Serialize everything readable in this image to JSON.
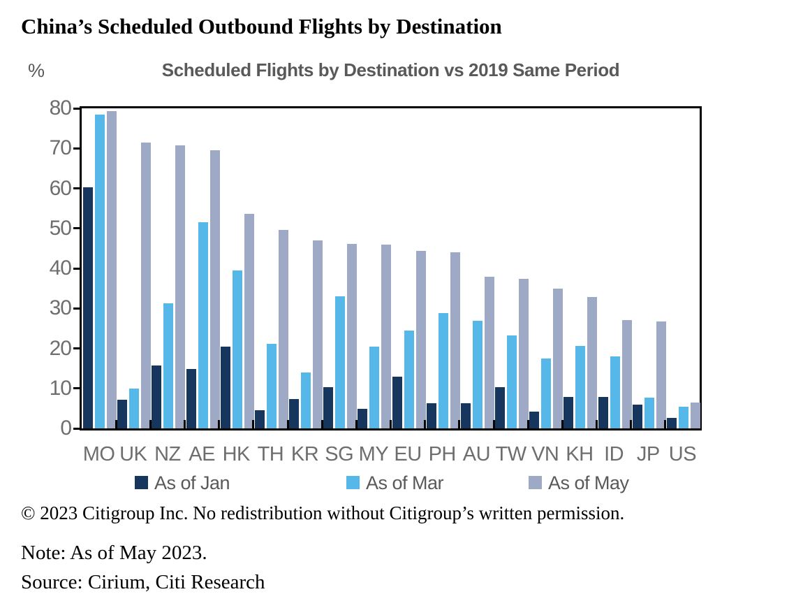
{
  "page_title": "China’s Scheduled Outbound Flights by Destination",
  "chart_data": {
    "type": "bar",
    "title": "Scheduled Flights by Destination vs 2019 Same Period",
    "unit_label": "%",
    "ylabel": "%",
    "ylim": [
      0,
      80
    ],
    "ytick_step": 10,
    "grid": false,
    "legend_position": "bottom",
    "categories": [
      "MO",
      "UK",
      "NZ",
      "AE",
      "HK",
      "TH",
      "KR",
      "SG",
      "MY",
      "EU",
      "PH",
      "AU",
      "TW",
      "VN",
      "KH",
      "ID",
      "JP",
      "US"
    ],
    "series": [
      {
        "name": "As of Jan",
        "color": "#17365D",
        "values": [
          60.2,
          7.2,
          15.8,
          14.8,
          20.4,
          4.5,
          7.3,
          10.3,
          4.9,
          13.0,
          6.3,
          6.3,
          10.3,
          4.2,
          7.9,
          7.9,
          6.0,
          2.6
        ]
      },
      {
        "name": "As of Mar",
        "color": "#55B8E8",
        "values": [
          78.5,
          9.9,
          31.3,
          51.5,
          39.4,
          21.1,
          14.0,
          33.0,
          20.5,
          24.4,
          28.8,
          26.9,
          23.2,
          17.5,
          20.6,
          18.0,
          7.7,
          5.5
        ]
      },
      {
        "name": "As of May",
        "color": "#9DA9C5",
        "values": [
          79.3,
          71.4,
          70.7,
          69.5,
          53.7,
          49.6,
          47.0,
          46.2,
          45.9,
          44.3,
          44.0,
          37.9,
          37.3,
          35.0,
          32.9,
          27.1,
          26.7,
          6.4
        ]
      }
    ]
  },
  "footer": {
    "copyright": "© 2023 Citigroup Inc. No redistribution without Citigroup’s written permission.",
    "note": "Note: As of May 2023.",
    "source": "Source: Cirium, Citi Research"
  }
}
